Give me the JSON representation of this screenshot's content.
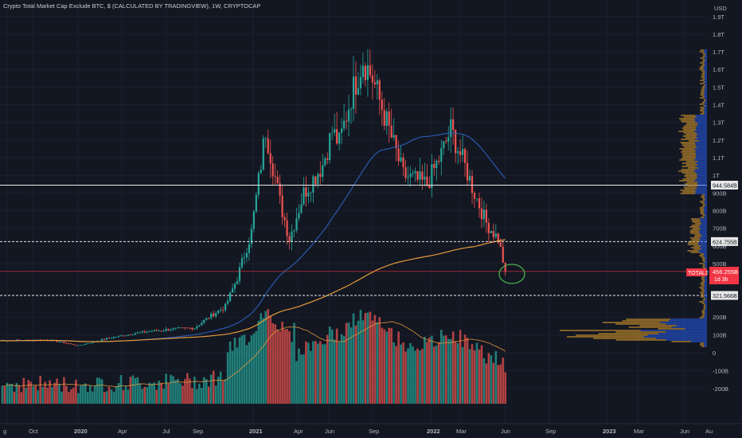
{
  "header": {
    "title": "Crypto Total Market Cap Exclude BTC, $ (CALCULATED BY TRADINGVIEW), 1W, CRYPTOCAP"
  },
  "price_axis": {
    "unit": "USD",
    "labels": [
      {
        "text": "1.9T",
        "value": 1900000000000
      },
      {
        "text": "1.8T",
        "value": 1800000000000
      },
      {
        "text": "1.7T",
        "value": 1700000000000
      },
      {
        "text": "1.6T",
        "value": 1600000000000
      },
      {
        "text": "1.5T",
        "value": 1500000000000
      },
      {
        "text": "1.4T",
        "value": 1400000000000
      },
      {
        "text": "1.3T",
        "value": 1300000000000
      },
      {
        "text": "1.2T",
        "value": 1200000000000
      },
      {
        "text": "1.1T",
        "value": 1100000000000
      },
      {
        "text": "1T",
        "value": 1000000000000
      },
      {
        "text": "900B",
        "value": 900000000000
      },
      {
        "text": "800B",
        "value": 800000000000
      },
      {
        "text": "700B",
        "value": 700000000000
      },
      {
        "text": "600B",
        "value": 600000000000
      },
      {
        "text": "500B",
        "value": 500000000000
      },
      {
        "text": "200B",
        "value": 200000000000
      },
      {
        "text": "100B",
        "value": 100000000000
      },
      {
        "text": "0",
        "value": 0
      },
      {
        "text": "-100B",
        "value": -100000000000
      },
      {
        "text": "-200B",
        "value": -200000000000
      }
    ]
  },
  "levels": [
    {
      "label": "944.584B",
      "value": 944584000000,
      "style": "solid"
    },
    {
      "label": "624.755B",
      "value": 624755000000,
      "style": "dashed"
    },
    {
      "label": "321.566B",
      "value": 321566000000,
      "style": "dashed"
    }
  ],
  "current": {
    "symbol": "TOTAL2",
    "price_label": "456.255B",
    "value": 456255000000,
    "countdown": "1d 3h",
    "color": "#f23645"
  },
  "time_axis": [
    "g",
    "Oct",
    "2020",
    "Apr",
    "Jul",
    "Sep",
    "2021",
    "Apr",
    "Jun",
    "Sep",
    "2022",
    "Mar",
    "Jun",
    "Sep",
    "2023",
    "Mar",
    "Jun",
    "Au"
  ],
  "colors": {
    "up": "#26a69a",
    "down": "#ef5350",
    "ma_long": "#e59a3a",
    "ma_mid": "#2a5fb8",
    "annotation": "#4caf50",
    "profile_a": "#2962ff",
    "profile_b": "#c08a2a"
  },
  "chart_data": {
    "type": "candlestick",
    "title": "Crypto Total Market Cap Exclude BTC, $ (CALCULATED BY TRADINGVIEW), 1W, CRYPTOCAP",
    "interval": "1W",
    "ylabel": "USD",
    "key_points": [
      {
        "date": "2019-09",
        "value": 70000000000
      },
      {
        "date": "2020-03",
        "value": 45000000000
      },
      {
        "date": "2020-09",
        "value": 130000000000
      },
      {
        "date": "2021-01",
        "value": 300000000000
      },
      {
        "date": "2021-05",
        "value": 1270000000000
      },
      {
        "date": "2021-07",
        "value": 650000000000
      },
      {
        "date": "2021-11",
        "value": 1680000000000
      },
      {
        "date": "2022-01",
        "value": 1000000000000
      },
      {
        "date": "2022-03",
        "value": 1250000000000
      },
      {
        "date": "2022-06",
        "value": 456255000000
      }
    ]
  }
}
